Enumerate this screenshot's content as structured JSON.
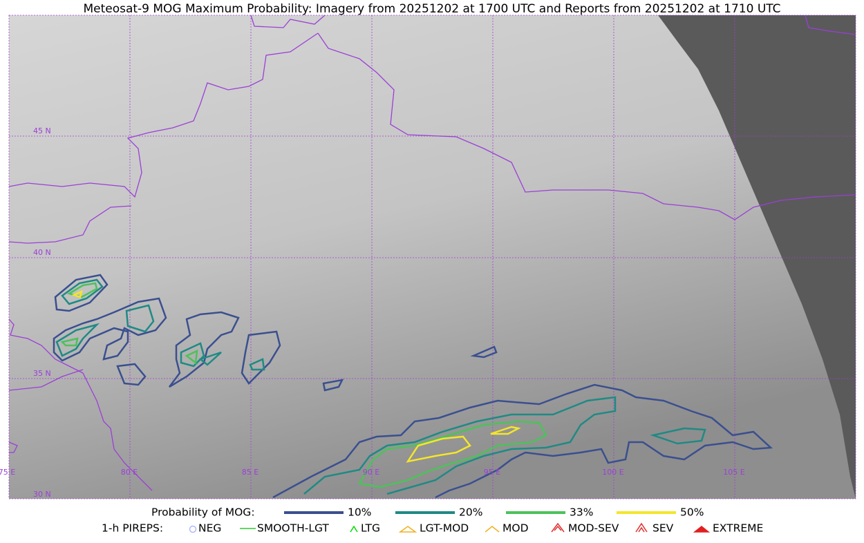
{
  "title": "Meteosat-9 MOG Maximum Probability: Imagery from 20251202 at 1700 UTC and Reports from 20251202 at 1710 UTC",
  "map": {
    "lat_labels": [
      "45 N",
      "40 N",
      "35 N",
      "30 N"
    ],
    "lon_labels": [
      "75 E",
      "80 E",
      "85 E",
      "90 E",
      "95 E",
      "100 E",
      "105 E"
    ]
  },
  "legend": {
    "probability": {
      "title": "Probability of MOG:",
      "items": [
        {
          "label": "10%",
          "color": "#3a4f8f"
        },
        {
          "label": "20%",
          "color": "#1f8a84"
        },
        {
          "label": "33%",
          "color": "#4cc25a"
        },
        {
          "label": "50%",
          "color": "#f4e62a"
        }
      ]
    },
    "pireps": {
      "title": "1-h PIREPS:",
      "items": [
        {
          "label": "NEG"
        },
        {
          "label": "SMOOTH-LGT"
        },
        {
          "label": "LTG"
        },
        {
          "label": "LGT-MOD"
        },
        {
          "label": "MOD"
        },
        {
          "label": "MOD-SEV"
        },
        {
          "label": "SEV"
        },
        {
          "label": "EXTREME"
        }
      ]
    }
  }
}
